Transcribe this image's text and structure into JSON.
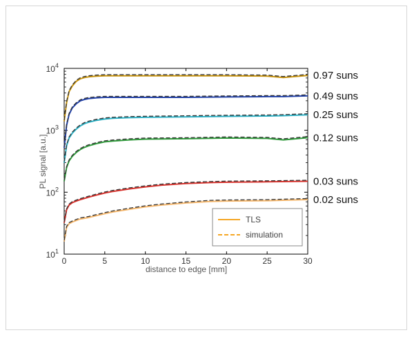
{
  "chart_data": {
    "type": "line",
    "xlabel": "distance to edge [mm]",
    "ylabel": "PL signal [a.u.]",
    "xlim": [
      0,
      30
    ],
    "ylim": [
      10,
      10000
    ],
    "yscale": "log",
    "x_ticks": [
      "0",
      "5",
      "10",
      "15",
      "20",
      "25",
      "30"
    ],
    "y_tick_bases": [
      "10",
      "10",
      "10",
      "10"
    ],
    "y_tick_exponents": [
      "1",
      "2",
      "3",
      "4"
    ],
    "legend": {
      "placement": "bottom-right",
      "entries": [
        {
          "label": "TLS",
          "style": "solid",
          "color": "#f5a623"
        },
        {
          "label": "simulation",
          "style": "dashed",
          "color": "#f5a623"
        }
      ]
    },
    "series": [
      {
        "label": "0.97 suns",
        "color": "#c8920a",
        "x": [
          0,
          0.3,
          0.6,
          1,
          1.5,
          2,
          2.5,
          3,
          4,
          5,
          6,
          8,
          10,
          15,
          20,
          25,
          27,
          30
        ],
        "y": [
          1400,
          2800,
          4200,
          5200,
          6200,
          6800,
          7100,
          7300,
          7500,
          7600,
          7600,
          7600,
          7600,
          7600,
          7600,
          7500,
          7100,
          7700
        ]
      },
      {
        "label": "0.49 suns",
        "color": "#1f3fa8",
        "x": [
          0,
          0.3,
          0.6,
          1,
          1.5,
          2,
          2.5,
          3,
          4,
          5,
          6,
          8,
          10,
          15,
          20,
          25,
          27,
          30
        ],
        "y": [
          520,
          1200,
          1800,
          2300,
          2700,
          3000,
          3150,
          3250,
          3350,
          3400,
          3400,
          3400,
          3400,
          3400,
          3450,
          3500,
          3500,
          3600
        ]
      },
      {
        "label": "0.25 suns",
        "color": "#2ab0c4",
        "x": [
          0,
          0.3,
          0.6,
          1,
          1.5,
          2,
          2.5,
          3,
          4,
          5,
          6,
          8,
          10,
          15,
          20,
          25,
          27,
          30
        ],
        "y": [
          300,
          560,
          750,
          900,
          1050,
          1180,
          1280,
          1350,
          1450,
          1520,
          1560,
          1600,
          1620,
          1650,
          1680,
          1700,
          1720,
          1780
        ]
      },
      {
        "label": "0.12 suns",
        "color": "#2e9a3a",
        "x": [
          0,
          0.3,
          0.6,
          1,
          1.5,
          2,
          2.5,
          3,
          4,
          5,
          6,
          8,
          10,
          15,
          20,
          25,
          27,
          30
        ],
        "y": [
          150,
          250,
          320,
          380,
          440,
          490,
          530,
          560,
          610,
          650,
          670,
          700,
          720,
          730,
          750,
          740,
          700,
          760
        ]
      },
      {
        "label": "0.03 suns",
        "color": "#d8302a",
        "x": [
          0,
          0.3,
          0.6,
          1,
          1.5,
          2,
          3,
          4,
          5,
          6,
          8,
          10,
          12,
          15,
          18,
          20,
          25,
          30
        ],
        "y": [
          32,
          52,
          62,
          68,
          72,
          76,
          83,
          90,
          97,
          103,
          113,
          122,
          130,
          138,
          143,
          145,
          147,
          150
        ]
      },
      {
        "label": "0.02 suns",
        "color": "#f5b66a",
        "x": [
          0,
          0.3,
          0.6,
          1,
          1.5,
          2,
          3,
          4,
          5,
          6,
          8,
          10,
          12,
          15,
          18,
          20,
          25,
          30
        ],
        "y": [
          16,
          27,
          31,
          33,
          35,
          37,
          39,
          42,
          45,
          48,
          53,
          58,
          62,
          67,
          71,
          72,
          73,
          76
        ]
      }
    ]
  }
}
